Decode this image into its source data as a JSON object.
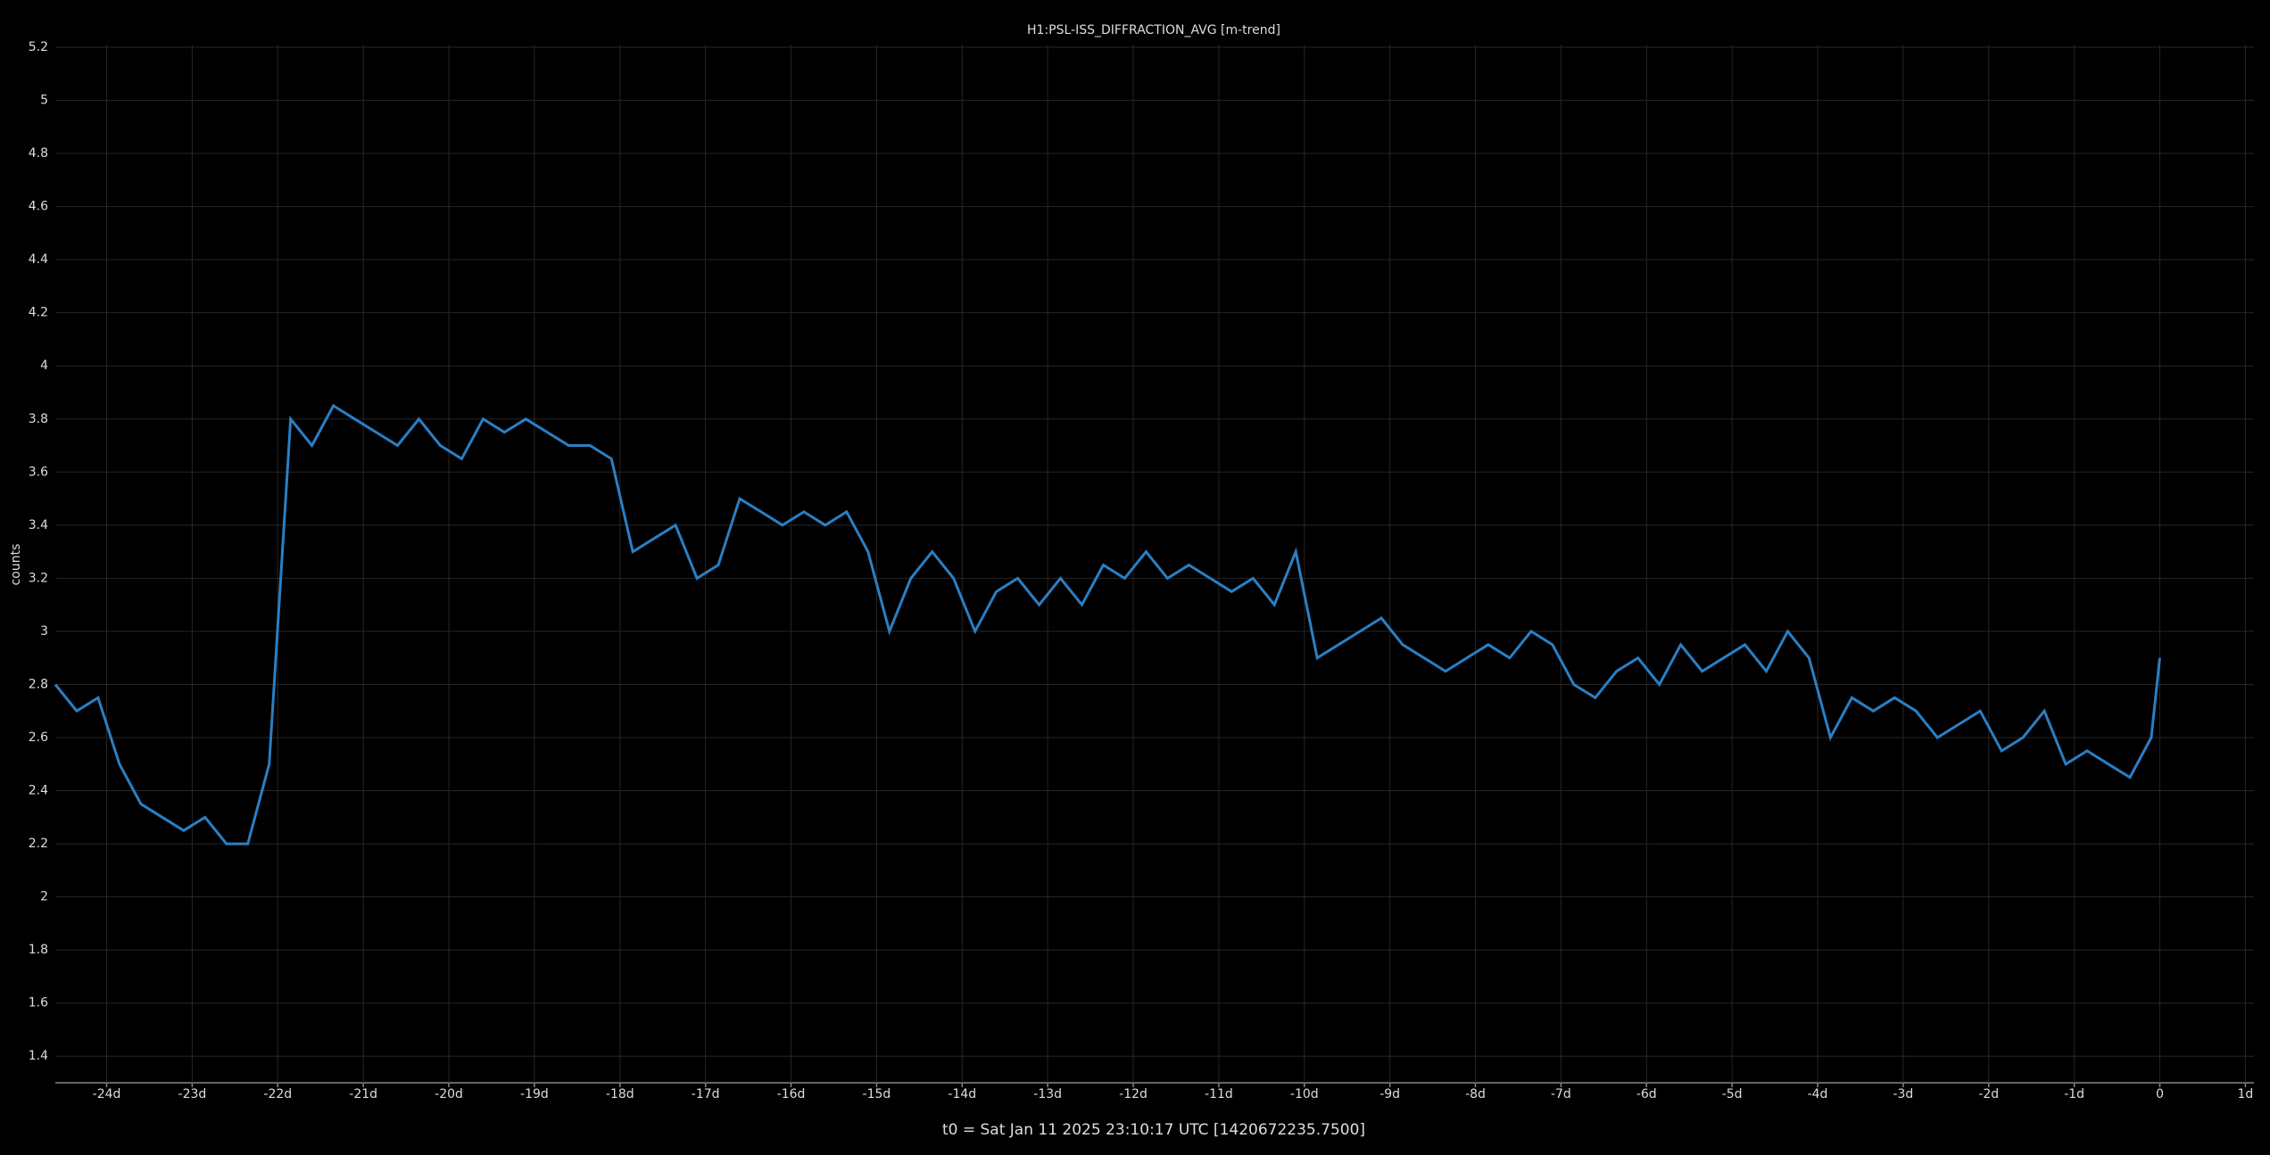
{
  "chart_data": {
    "type": "line",
    "title": "H1:PSL-ISS_DIFFRACTION_AVG [m-trend]",
    "y_label": "counts",
    "x_label": "t0 = Sat Jan 11 2025 23:10:17 UTC [1420672235.7500]",
    "color": "#2a7fc4",
    "grid": true,
    "x": [
      -24.6,
      -24.35,
      -24.1,
      -23.85,
      -23.6,
      -23.35,
      -23.1,
      -22.85,
      -22.6,
      -22.35,
      -22.1,
      -21.85,
      -21.6,
      -21.35,
      -21.1,
      -20.85,
      -20.6,
      -20.35,
      -20.1,
      -19.85,
      -19.6,
      -19.35,
      -19.1,
      -18.85,
      -18.6,
      -18.35,
      -18.1,
      -17.85,
      -17.6,
      -17.35,
      -17.1,
      -16.85,
      -16.6,
      -16.35,
      -16.1,
      -15.85,
      -15.6,
      -15.35,
      -15.1,
      -14.85,
      -14.6,
      -14.35,
      -14.1,
      -13.85,
      -13.6,
      -13.35,
      -13.1,
      -12.85,
      -12.6,
      -12.35,
      -12.1,
      -11.85,
      -11.6,
      -11.35,
      -11.1,
      -10.85,
      -10.6,
      -10.35,
      -10.1,
      -9.85,
      -9.6,
      -9.35,
      -9.1,
      -8.85,
      -8.6,
      -8.35,
      -8.1,
      -7.85,
      -7.6,
      -7.35,
      -7.1,
      -6.85,
      -6.6,
      -6.35,
      -6.1,
      -5.85,
      -5.6,
      -5.35,
      -5.1,
      -4.85,
      -4.6,
      -4.35,
      -4.1,
      -3.85,
      -3.6,
      -3.35,
      -3.1,
      -2.85,
      -2.6,
      -2.35,
      -2.1,
      -1.85,
      -1.6,
      -1.35,
      -1.1,
      -0.85,
      -0.6,
      -0.35,
      -0.1,
      0
    ],
    "values": [
      2.8,
      2.7,
      2.75,
      2.5,
      2.35,
      2.3,
      2.25,
      2.3,
      2.2,
      2.2,
      2.5,
      3.8,
      3.7,
      3.85,
      3.8,
      3.75,
      3.7,
      3.8,
      3.7,
      3.65,
      3.8,
      3.75,
      3.8,
      3.75,
      3.7,
      3.7,
      3.65,
      3.3,
      3.35,
      3.4,
      3.2,
      3.25,
      3.5,
      3.45,
      3.4,
      3.45,
      3.4,
      3.45,
      3.3,
      3.0,
      3.2,
      3.3,
      3.2,
      3.0,
      3.15,
      3.2,
      3.1,
      3.2,
      3.1,
      3.25,
      3.2,
      3.3,
      3.2,
      3.25,
      3.2,
      3.15,
      3.2,
      3.1,
      3.3,
      2.9,
      2.95,
      3.0,
      3.05,
      2.95,
      2.9,
      2.85,
      2.9,
      2.95,
      2.9,
      3.0,
      2.95,
      2.8,
      2.75,
      2.85,
      2.9,
      2.8,
      2.95,
      2.85,
      2.9,
      2.95,
      2.85,
      3.0,
      2.9,
      2.6,
      2.75,
      2.7,
      2.75,
      2.7,
      2.6,
      2.65,
      2.7,
      2.55,
      2.6,
      2.7,
      2.5,
      2.55,
      2.5,
      2.45,
      2.6,
      2.9
    ],
    "xlim": [
      -24.6,
      1.1
    ],
    "xticks": [
      {
        "value": -24,
        "label": "-24d"
      },
      {
        "value": -23,
        "label": "-23d"
      },
      {
        "value": -22,
        "label": "-22d"
      },
      {
        "value": -21,
        "label": "-21d"
      },
      {
        "value": -20,
        "label": "-20d"
      },
      {
        "value": -19,
        "label": "-19d"
      },
      {
        "value": -18,
        "label": "-18d"
      },
      {
        "value": -17,
        "label": "-17d"
      },
      {
        "value": -16,
        "label": "-16d"
      },
      {
        "value": -15,
        "label": "-15d"
      },
      {
        "value": -14,
        "label": "-14d"
      },
      {
        "value": -13,
        "label": "-13d"
      },
      {
        "value": -12,
        "label": "-12d"
      },
      {
        "value": -11,
        "label": "-11d"
      },
      {
        "value": -10,
        "label": "-10d"
      },
      {
        "value": -9,
        "label": "-9d"
      },
      {
        "value": -8,
        "label": "-8d"
      },
      {
        "value": -7,
        "label": "-7d"
      },
      {
        "value": -6,
        "label": "-6d"
      },
      {
        "value": -5,
        "label": "-5d"
      },
      {
        "value": -4,
        "label": "-4d"
      },
      {
        "value": -3,
        "label": "-3d"
      },
      {
        "value": -2,
        "label": "-2d"
      },
      {
        "value": -1,
        "label": "-1d"
      },
      0,
      {
        "value": 1,
        "label": "1d"
      }
    ],
    "ylim": [
      1.3,
      5.21
    ],
    "yticks": [
      1.4,
      1.6,
      1.8,
      2,
      2.2,
      2.4,
      2.6,
      2.8,
      3,
      3.2,
      3.4,
      3.6,
      3.8,
      4,
      4.2,
      4.4,
      4.6,
      4.8,
      5,
      5.2
    ]
  }
}
